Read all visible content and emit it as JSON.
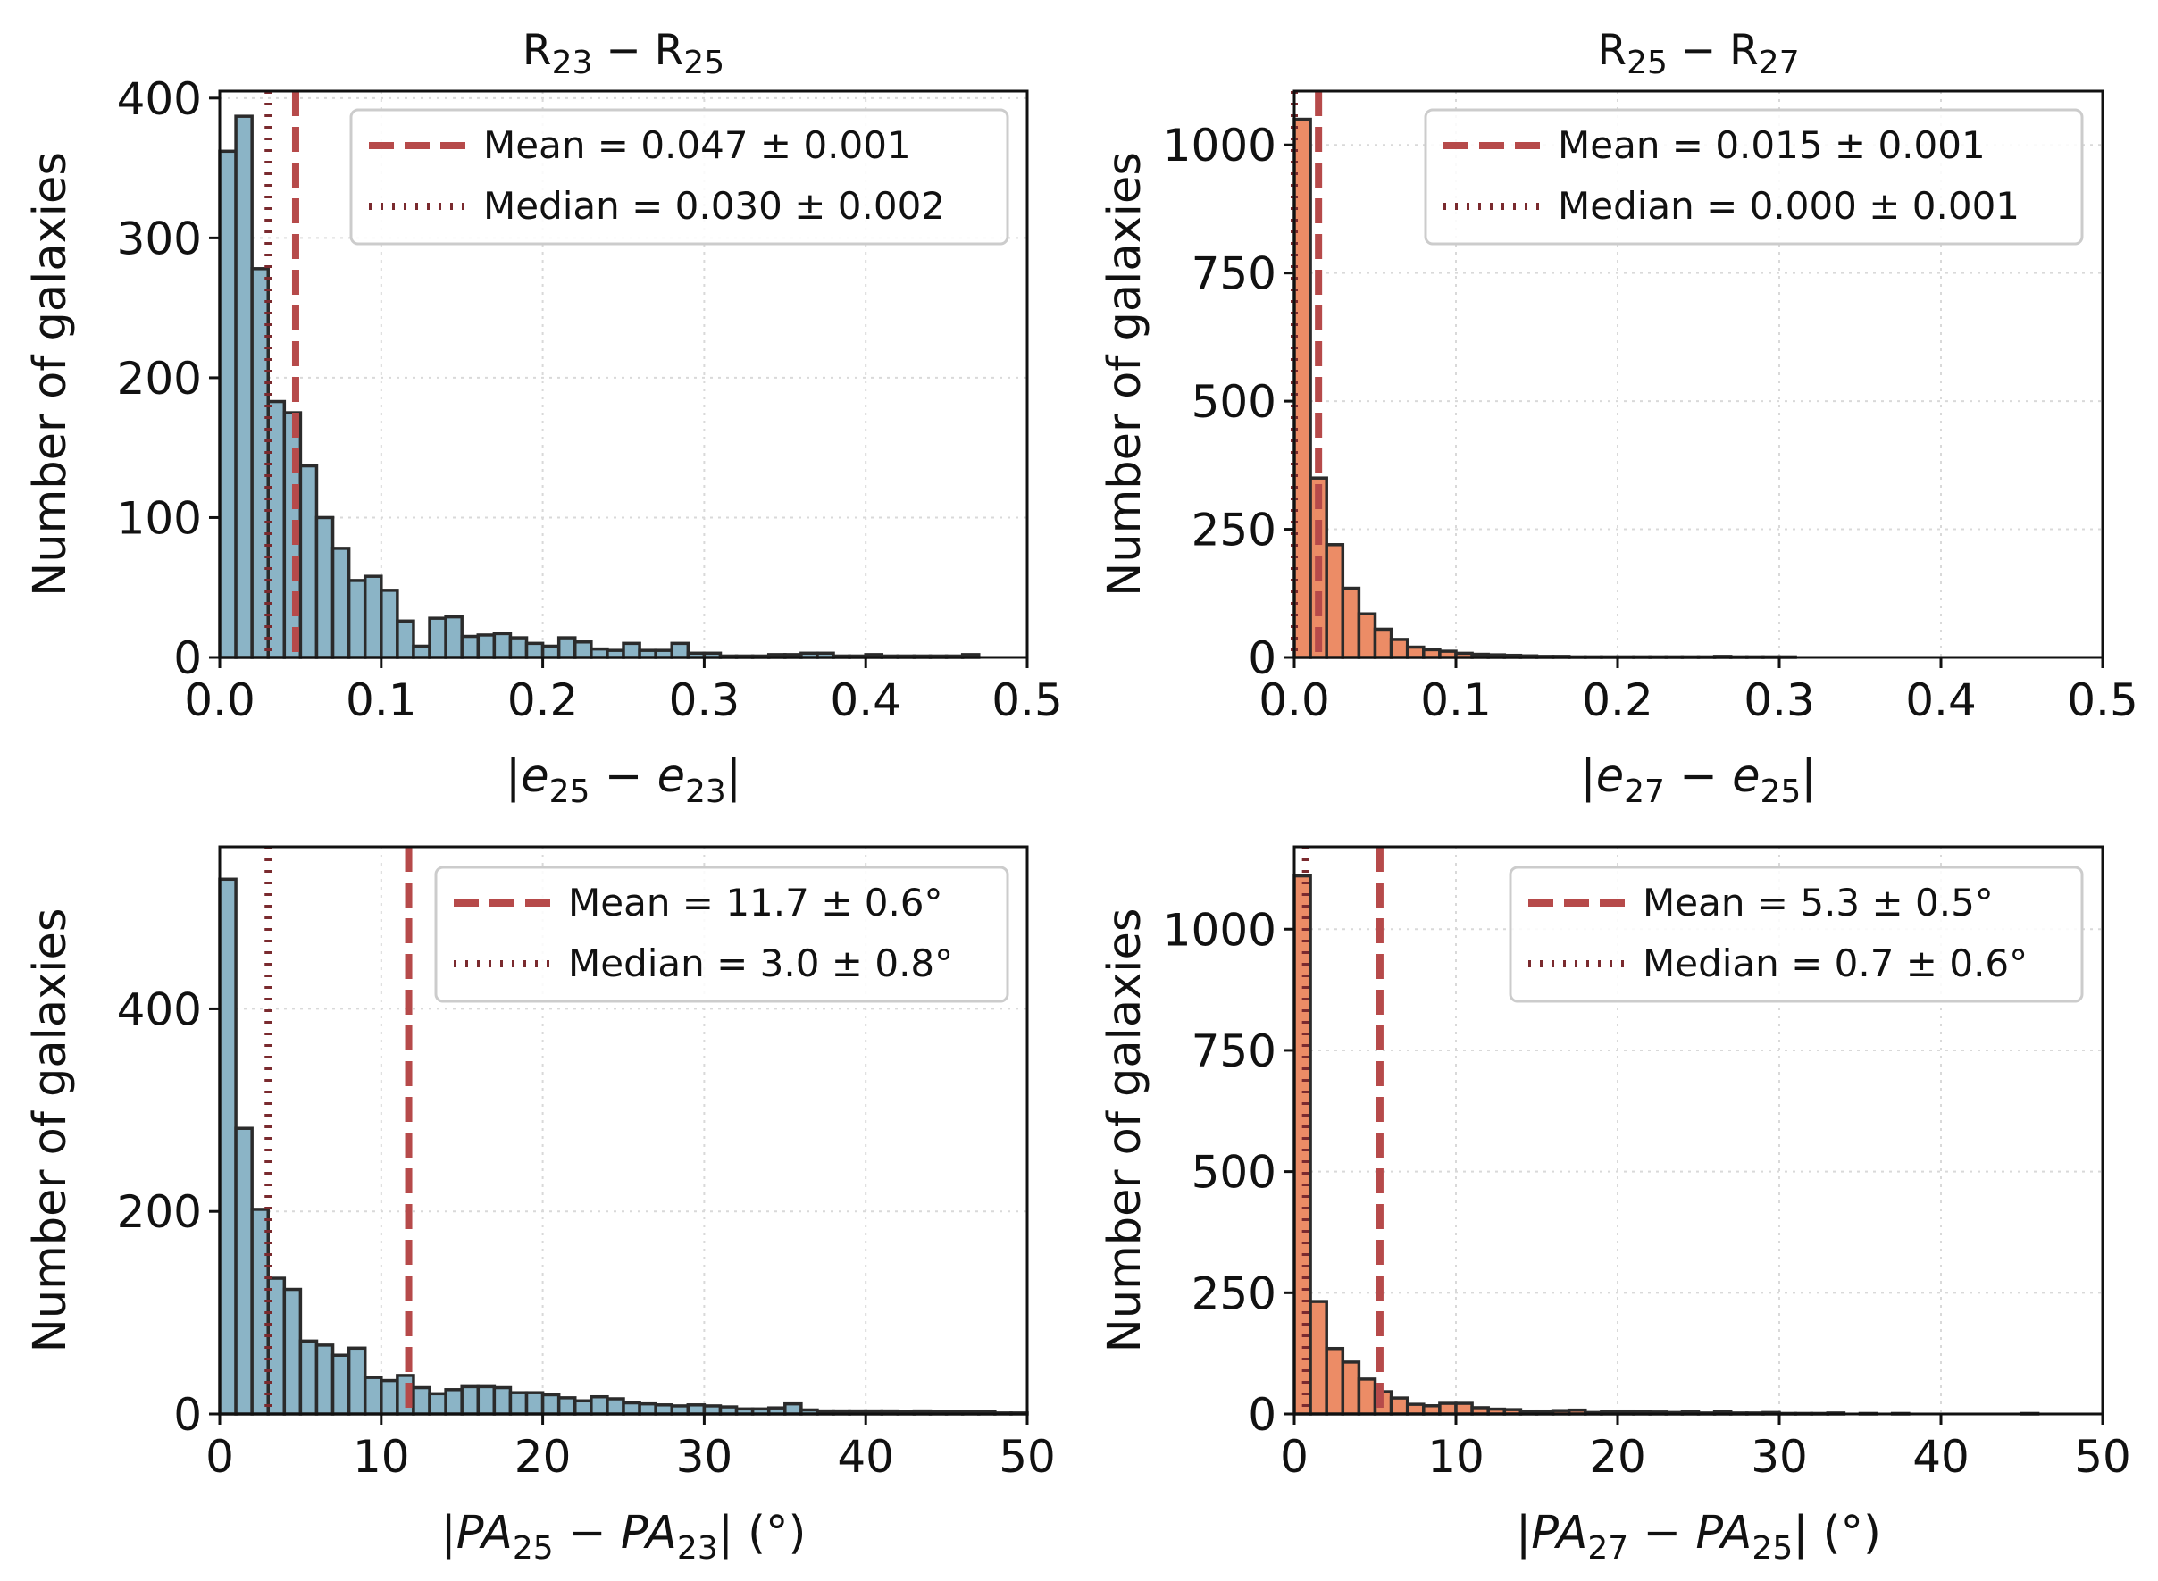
{
  "colors": {
    "blue_fill": "#8bb4c6",
    "orange_fill": "#ec8c66",
    "bar_edge": "#2b2b2b",
    "mean_line": "#b64a4a",
    "median_line": "#7a2a2e"
  },
  "chart_data": [
    {
      "id": "e_23_25",
      "type": "bar",
      "title": {
        "main": "R",
        "sub1": "23",
        "mid": " − R",
        "sub2": "25"
      },
      "xlabel": {
        "parts": [
          {
            "t": "|",
            "i": false
          },
          {
            "t": "e",
            "i": true
          },
          {
            "t": "25",
            "s": true
          },
          {
            "t": " − ",
            "i": false
          },
          {
            "t": "e",
            "i": true
          },
          {
            "t": "23",
            "s": true
          },
          {
            "t": "|",
            "i": false
          }
        ]
      },
      "ylabel": "Number of galaxies",
      "xlim": [
        0,
        0.5
      ],
      "ylim": [
        0,
        405
      ],
      "xticks": [
        0.0,
        0.1,
        0.2,
        0.3,
        0.4,
        0.5
      ],
      "xtick_labels": [
        "0.0",
        "0.1",
        "0.2",
        "0.3",
        "0.4",
        "0.5"
      ],
      "yticks": [
        0,
        100,
        200,
        300,
        400
      ],
      "ytick_labels": [
        "0",
        "100",
        "200",
        "300",
        "400"
      ],
      "bin_start": 0.0,
      "bin_width": 0.01,
      "counts": [
        362,
        387,
        278,
        183,
        175,
        137,
        100,
        78,
        55,
        58,
        48,
        26,
        8,
        28,
        29,
        15,
        16,
        17,
        14,
        10,
        8,
        14,
        11,
        6,
        5,
        10,
        5,
        5,
        10,
        3,
        3,
        1,
        1,
        1,
        2,
        2,
        3,
        3,
        1,
        1,
        2,
        1,
        1,
        1,
        1,
        1,
        2,
        0,
        0,
        0
      ],
      "fill": "blue",
      "mean": 0.047,
      "median": 0.03,
      "legend": {
        "position": "upper right",
        "mean_label": "Mean = 0.047 ± 0.001",
        "median_label": "Median = 0.030 ± 0.002"
      }
    },
    {
      "id": "e_25_27",
      "type": "bar",
      "title": {
        "main": "R",
        "sub1": "25",
        "mid": " − R",
        "sub2": "27"
      },
      "xlabel": {
        "parts": [
          {
            "t": "|",
            "i": false
          },
          {
            "t": "e",
            "i": true
          },
          {
            "t": "27",
            "s": true
          },
          {
            "t": " − ",
            "i": false
          },
          {
            "t": "e",
            "i": true
          },
          {
            "t": "25",
            "s": true
          },
          {
            "t": "|",
            "i": false
          }
        ]
      },
      "ylabel": "Number of galaxies",
      "xlim": [
        0,
        0.5
      ],
      "ylim": [
        0,
        1105
      ],
      "xticks": [
        0.0,
        0.1,
        0.2,
        0.3,
        0.4,
        0.5
      ],
      "xtick_labels": [
        "0.0",
        "0.1",
        "0.2",
        "0.3",
        "0.4",
        "0.5"
      ],
      "yticks": [
        0,
        250,
        500,
        750,
        1000
      ],
      "ytick_labels": [
        "0",
        "250",
        "500",
        "750",
        "1000"
      ],
      "bin_start": 0.0,
      "bin_width": 0.01,
      "counts": [
        1050,
        350,
        220,
        135,
        85,
        55,
        35,
        20,
        15,
        12,
        8,
        6,
        5,
        4,
        3,
        2,
        2,
        1,
        1,
        1,
        1,
        1,
        1,
        1,
        1,
        1,
        2,
        1,
        1,
        1,
        1,
        0,
        0,
        0,
        0,
        0,
        0,
        0,
        0,
        0,
        0,
        0,
        0,
        0,
        0,
        0,
        0,
        0,
        0,
        0
      ],
      "fill": "orange",
      "mean": 0.015,
      "median": 0.0,
      "legend": {
        "position": "upper right",
        "mean_label": "Mean = 0.015 ± 0.001",
        "median_label": "Median = 0.000 ± 0.001"
      }
    },
    {
      "id": "pa_23_25",
      "type": "bar",
      "title": null,
      "xlabel": {
        "parts": [
          {
            "t": "|",
            "i": false
          },
          {
            "t": "PA",
            "i": true
          },
          {
            "t": "25",
            "s": true
          },
          {
            "t": " − ",
            "i": false
          },
          {
            "t": "PA",
            "i": true
          },
          {
            "t": "23",
            "s": true
          },
          {
            "t": "| (°)",
            "i": false
          }
        ]
      },
      "ylabel": "Number of galaxies",
      "xlim": [
        0,
        50
      ],
      "ylim": [
        0,
        560
      ],
      "xticks": [
        0,
        10,
        20,
        30,
        40,
        50
      ],
      "xtick_labels": [
        "0",
        "10",
        "20",
        "30",
        "40",
        "50"
      ],
      "yticks": [
        0,
        200,
        400
      ],
      "ytick_labels": [
        "0",
        "200",
        "400"
      ],
      "bin_start": 0.0,
      "bin_width": 1.0,
      "counts": [
        528,
        282,
        202,
        134,
        123,
        72,
        68,
        58,
        65,
        36,
        33,
        38,
        26,
        20,
        24,
        27,
        27,
        26,
        21,
        21,
        19,
        16,
        13,
        17,
        15,
        11,
        10,
        9,
        8,
        9,
        8,
        7,
        5,
        5,
        6,
        10,
        4,
        3,
        3,
        3,
        3,
        3,
        2,
        3,
        2,
        2,
        2,
        2,
        1,
        1
      ],
      "fill": "blue",
      "mean": 11.7,
      "median": 3.0,
      "legend": {
        "position": "upper right",
        "mean_label": "Mean = 11.7 ± 0.6°",
        "median_label": "Median = 3.0 ± 0.8°"
      }
    },
    {
      "id": "pa_25_27",
      "type": "bar",
      "title": null,
      "xlabel": {
        "parts": [
          {
            "t": "|",
            "i": false
          },
          {
            "t": "PA",
            "i": true
          },
          {
            "t": "27",
            "s": true
          },
          {
            "t": " − ",
            "i": false
          },
          {
            "t": "PA",
            "i": true
          },
          {
            "t": "25",
            "s": true
          },
          {
            "t": "| (°)",
            "i": false
          }
        ]
      },
      "ylabel": "Number of galaxies",
      "xlim": [
        0,
        50
      ],
      "ylim": [
        0,
        1170
      ],
      "xticks": [
        0,
        10,
        20,
        30,
        40,
        50
      ],
      "xtick_labels": [
        "0",
        "10",
        "20",
        "30",
        "40",
        "50"
      ],
      "yticks": [
        0,
        250,
        500,
        750,
        1000
      ],
      "ytick_labels": [
        "0",
        "250",
        "500",
        "750",
        "1000"
      ],
      "bin_start": 0.0,
      "bin_width": 1.0,
      "counts": [
        1110,
        232,
        135,
        107,
        72,
        46,
        33,
        20,
        17,
        22,
        22,
        13,
        10,
        9,
        6,
        6,
        7,
        8,
        3,
        5,
        6,
        5,
        4,
        3,
        5,
        2,
        5,
        2,
        2,
        3,
        1,
        1,
        1,
        2,
        0,
        1,
        0,
        1,
        0,
        0,
        0,
        0,
        0,
        0,
        0,
        1,
        0,
        0,
        0,
        0
      ],
      "fill": "orange",
      "mean": 5.3,
      "median": 0.7,
      "legend": {
        "position": "upper right",
        "mean_label": "Mean = 5.3 ± 0.5°",
        "median_label": "Median = 0.7 ± 0.6°"
      }
    }
  ]
}
